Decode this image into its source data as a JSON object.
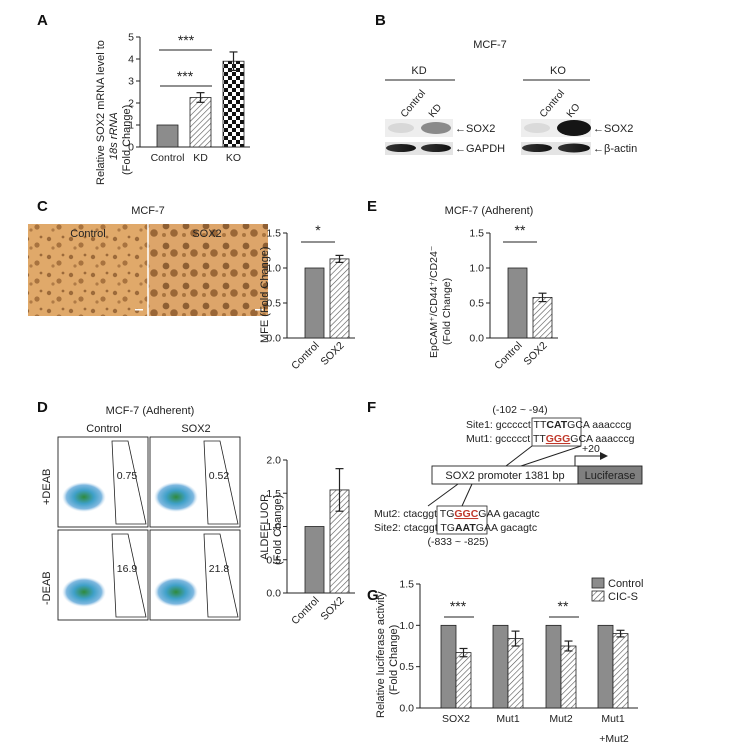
{
  "panels": {
    "A": {
      "label": "A",
      "ylabel_line1": "Relative SOX2 mRNA level to",
      "ylabel_line2": "18s rRNA",
      "ylabel_line3": "(Fold Change)",
      "significance": [
        "***",
        "***"
      ]
    },
    "B": {
      "label": "B",
      "title": "MCF-7",
      "kd_label": "KD",
      "ko_label": "KO",
      "lanes": [
        "Control",
        "KD",
        "Control",
        "KO"
      ],
      "band_sox2": "SOX2",
      "band_gapdh": "GAPDH",
      "band_actin": "β-actin"
    },
    "C": {
      "label": "C",
      "title": "MCF-7",
      "img_left": "Control",
      "img_right": "SOX2",
      "ylabel": "MFE (Fold Change)",
      "significance": "*"
    },
    "D": {
      "label": "D",
      "title": "MCF-7 (Adherent)",
      "col_left": "Control",
      "col_right": "SOX2",
      "row_top": "+DEAB",
      "row_bottom": "-DEAB",
      "gate_values": [
        "0.75",
        "0.52",
        "16.9",
        "21.8"
      ],
      "ylabel_line1": "ALDEFLUOR",
      "ylabel_line2": "(Fold Change)"
    },
    "E": {
      "label": "E",
      "title": "MCF-7 (Adherent)",
      "ylabel_line1": "EpCAM⁺/CD44⁺/CD24⁻",
      "ylabel_line2": "(Fold Change)",
      "significance": "**"
    },
    "F": {
      "label": "F",
      "range_top": "(-102 ~ -94)",
      "site1_label": "Site1:",
      "site1_left": "gccccct",
      "site1_core_a": "TT",
      "site1_core_b": "CAT",
      "site1_core_c": "GCA",
      "site1_right": "aaacccg",
      "mut1_label": "Mut1:",
      "mut1_left": "gccccct",
      "mut1_core_a": "TT",
      "mut1_core_b": "GGG",
      "mut1_core_c": "GCA",
      "mut1_right": "aaacccg",
      "tss": "+20",
      "promoter": "SOX2 promoter 1381 bp",
      "luciferase": "Luciferase",
      "mut2_label": "Mut2:",
      "mut2_left": "ctacggt",
      "mut2_core_a": "TG",
      "mut2_core_b": "GGC",
      "mut2_core_c": "GAA",
      "mut2_right": "gacagtc",
      "site2_label": "Site2:",
      "site2_left": "ctacggt",
      "site2_core_a": "TG",
      "site2_core_b": "AAT",
      "site2_core_c": "GAA",
      "site2_right": "gacagtc",
      "range_bottom": "(-833 ~ -825)"
    },
    "G": {
      "label": "G",
      "ylabel_line1": "Relative luciferase activity",
      "ylabel_line2": "(Fold Change)",
      "significance": [
        "***",
        "**"
      ],
      "mut12_line2": "+Mut2"
    }
  },
  "colors": {
    "control_bar": "#8c8c8c",
    "mutation_red": "#c0392b",
    "luciferase_box": "#7f7f7f",
    "gate_text": "#c0392b"
  },
  "chart_data": [
    {
      "panel": "A",
      "type": "bar",
      "categories": [
        "Control",
        "KD",
        "KO"
      ],
      "values": [
        1.0,
        2.25,
        3.9
      ],
      "errors": [
        0.0,
        0.22,
        0.42
      ],
      "ylabel": "Relative SOX2 mRNA level to 18s rRNA (Fold Change)",
      "ylim": [
        0,
        5
      ],
      "yticks": [
        0,
        1,
        2,
        3,
        4,
        5
      ]
    },
    {
      "panel": "C",
      "type": "bar",
      "categories": [
        "Control",
        "SOX2"
      ],
      "values": [
        1.0,
        1.13
      ],
      "errors": [
        0.0,
        0.05
      ],
      "ylabel": "MFE (Fold Change)",
      "ylim": [
        0,
        1.5
      ],
      "yticks": [
        0.0,
        0.5,
        1.0,
        1.5
      ]
    },
    {
      "panel": "D",
      "type": "bar",
      "categories": [
        "Control",
        "SOX2"
      ],
      "values": [
        1.0,
        1.55
      ],
      "errors": [
        0.0,
        0.32
      ],
      "ylabel": "ALDEFLUOR (Fold Change)",
      "ylim": [
        0,
        2.0
      ],
      "yticks": [
        0.0,
        0.5,
        1.0,
        1.5,
        2.0
      ]
    },
    {
      "panel": "E",
      "type": "bar",
      "categories": [
        "Control",
        "SOX2"
      ],
      "values": [
        1.0,
        0.58
      ],
      "errors": [
        0.0,
        0.06
      ],
      "ylabel": "EpCAM+/CD44+/CD24- (Fold Change)",
      "ylim": [
        0,
        1.5
      ],
      "yticks": [
        0.0,
        0.5,
        1.0,
        1.5
      ]
    },
    {
      "panel": "G",
      "type": "bar",
      "categories": [
        "SOX2",
        "Mut1",
        "Mut2",
        "Mut1"
      ],
      "series": [
        {
          "name": "Control",
          "values": [
            1.0,
            1.0,
            1.0,
            1.0
          ],
          "errors": [
            0,
            0,
            0,
            0
          ]
        },
        {
          "name": "CIC-S",
          "values": [
            0.67,
            0.84,
            0.75,
            0.9
          ],
          "errors": [
            0.05,
            0.09,
            0.06,
            0.04
          ]
        }
      ],
      "ylabel": "Relative luciferase activity (Fold Change)",
      "ylim": [
        0,
        1.5
      ],
      "yticks": [
        0.0,
        0.5,
        1.0,
        1.5
      ],
      "legend_position": "top-right"
    }
  ]
}
